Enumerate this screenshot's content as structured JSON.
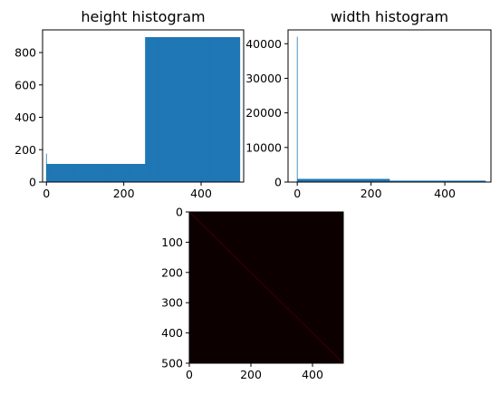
{
  "colors": {
    "bar": "#1f77b4",
    "axis": "#000000",
    "heatmap_bg": "#0d0000",
    "heatmap_diag": "#3a0000"
  },
  "chart_data": [
    {
      "type": "bar",
      "title": "height histogram",
      "xlabel": "",
      "ylabel": "",
      "xlim": [
        -10,
        510
      ],
      "ylim": [
        0,
        940
      ],
      "grid": false,
      "xticks": [
        0,
        200,
        400
      ],
      "yticks": [
        0,
        200,
        400,
        600,
        800
      ],
      "segments": [
        {
          "x_start": 0,
          "x_end": 0,
          "value": 175
        },
        {
          "x_start": 1,
          "x_end": 255,
          "value": 112
        },
        {
          "x_start": 256,
          "x_end": 500,
          "value": 895
        }
      ]
    },
    {
      "type": "bar",
      "title": "width histogram",
      "xlabel": "",
      "ylabel": "",
      "xlim": [
        -25,
        525
      ],
      "ylim": [
        0,
        44000
      ],
      "grid": false,
      "xticks": [
        0,
        200,
        400
      ],
      "yticks": [
        0,
        10000,
        20000,
        30000,
        40000
      ],
      "segments": [
        {
          "x_start": 0,
          "x_end": 0,
          "value": 42000
        },
        {
          "x_start": 1,
          "x_end": 250,
          "value": 900
        },
        {
          "x_start": 251,
          "x_end": 510,
          "value": 400
        }
      ]
    },
    {
      "type": "heatmap",
      "title": "",
      "xlabel": "",
      "ylabel": "",
      "xlim": [
        0,
        500
      ],
      "ylim": [
        500,
        0
      ],
      "grid": false,
      "xticks": [
        0,
        200,
        400
      ],
      "yticks": [
        0,
        100,
        200,
        300,
        400,
        500
      ],
      "description_colormap": "hot",
      "diagonal": true
    }
  ]
}
